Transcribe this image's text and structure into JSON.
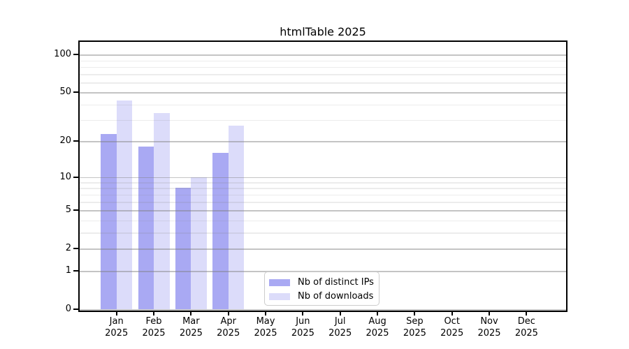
{
  "chart_data": {
    "type": "bar",
    "title": "htmlTable 2025",
    "categories": [
      "Jan",
      "Feb",
      "Mar",
      "Apr",
      "May",
      "Jun",
      "Jul",
      "Aug",
      "Sep",
      "Oct",
      "Nov",
      "Dec"
    ],
    "category_year": "2025",
    "series": [
      {
        "name": "Nb of distinct IPs",
        "color": "#a9a9f3",
        "values": [
          23,
          18,
          8,
          16,
          0,
          0,
          0,
          0,
          0,
          0,
          0,
          0
        ]
      },
      {
        "name": "Nb of downloads",
        "color": "#dcdcfa",
        "values": [
          43,
          34,
          10,
          27,
          0,
          0,
          0,
          0,
          0,
          0,
          0,
          0
        ]
      }
    ],
    "yscale": "log1p",
    "ylim": [
      0,
      127
    ],
    "y_major_ticks": [
      100,
      50,
      20,
      10,
      5,
      2,
      1,
      0
    ],
    "y_minor_ticks": [
      90,
      80,
      70,
      60,
      40,
      30,
      9,
      8,
      7,
      6,
      4,
      3
    ],
    "grid": "both",
    "legend_position": "bottom-center"
  },
  "colors": {
    "background": "#ffffff",
    "axis": "#000000",
    "grid": "#7d7d7d",
    "legend_border": "#cccccc",
    "text": "#000000"
  }
}
